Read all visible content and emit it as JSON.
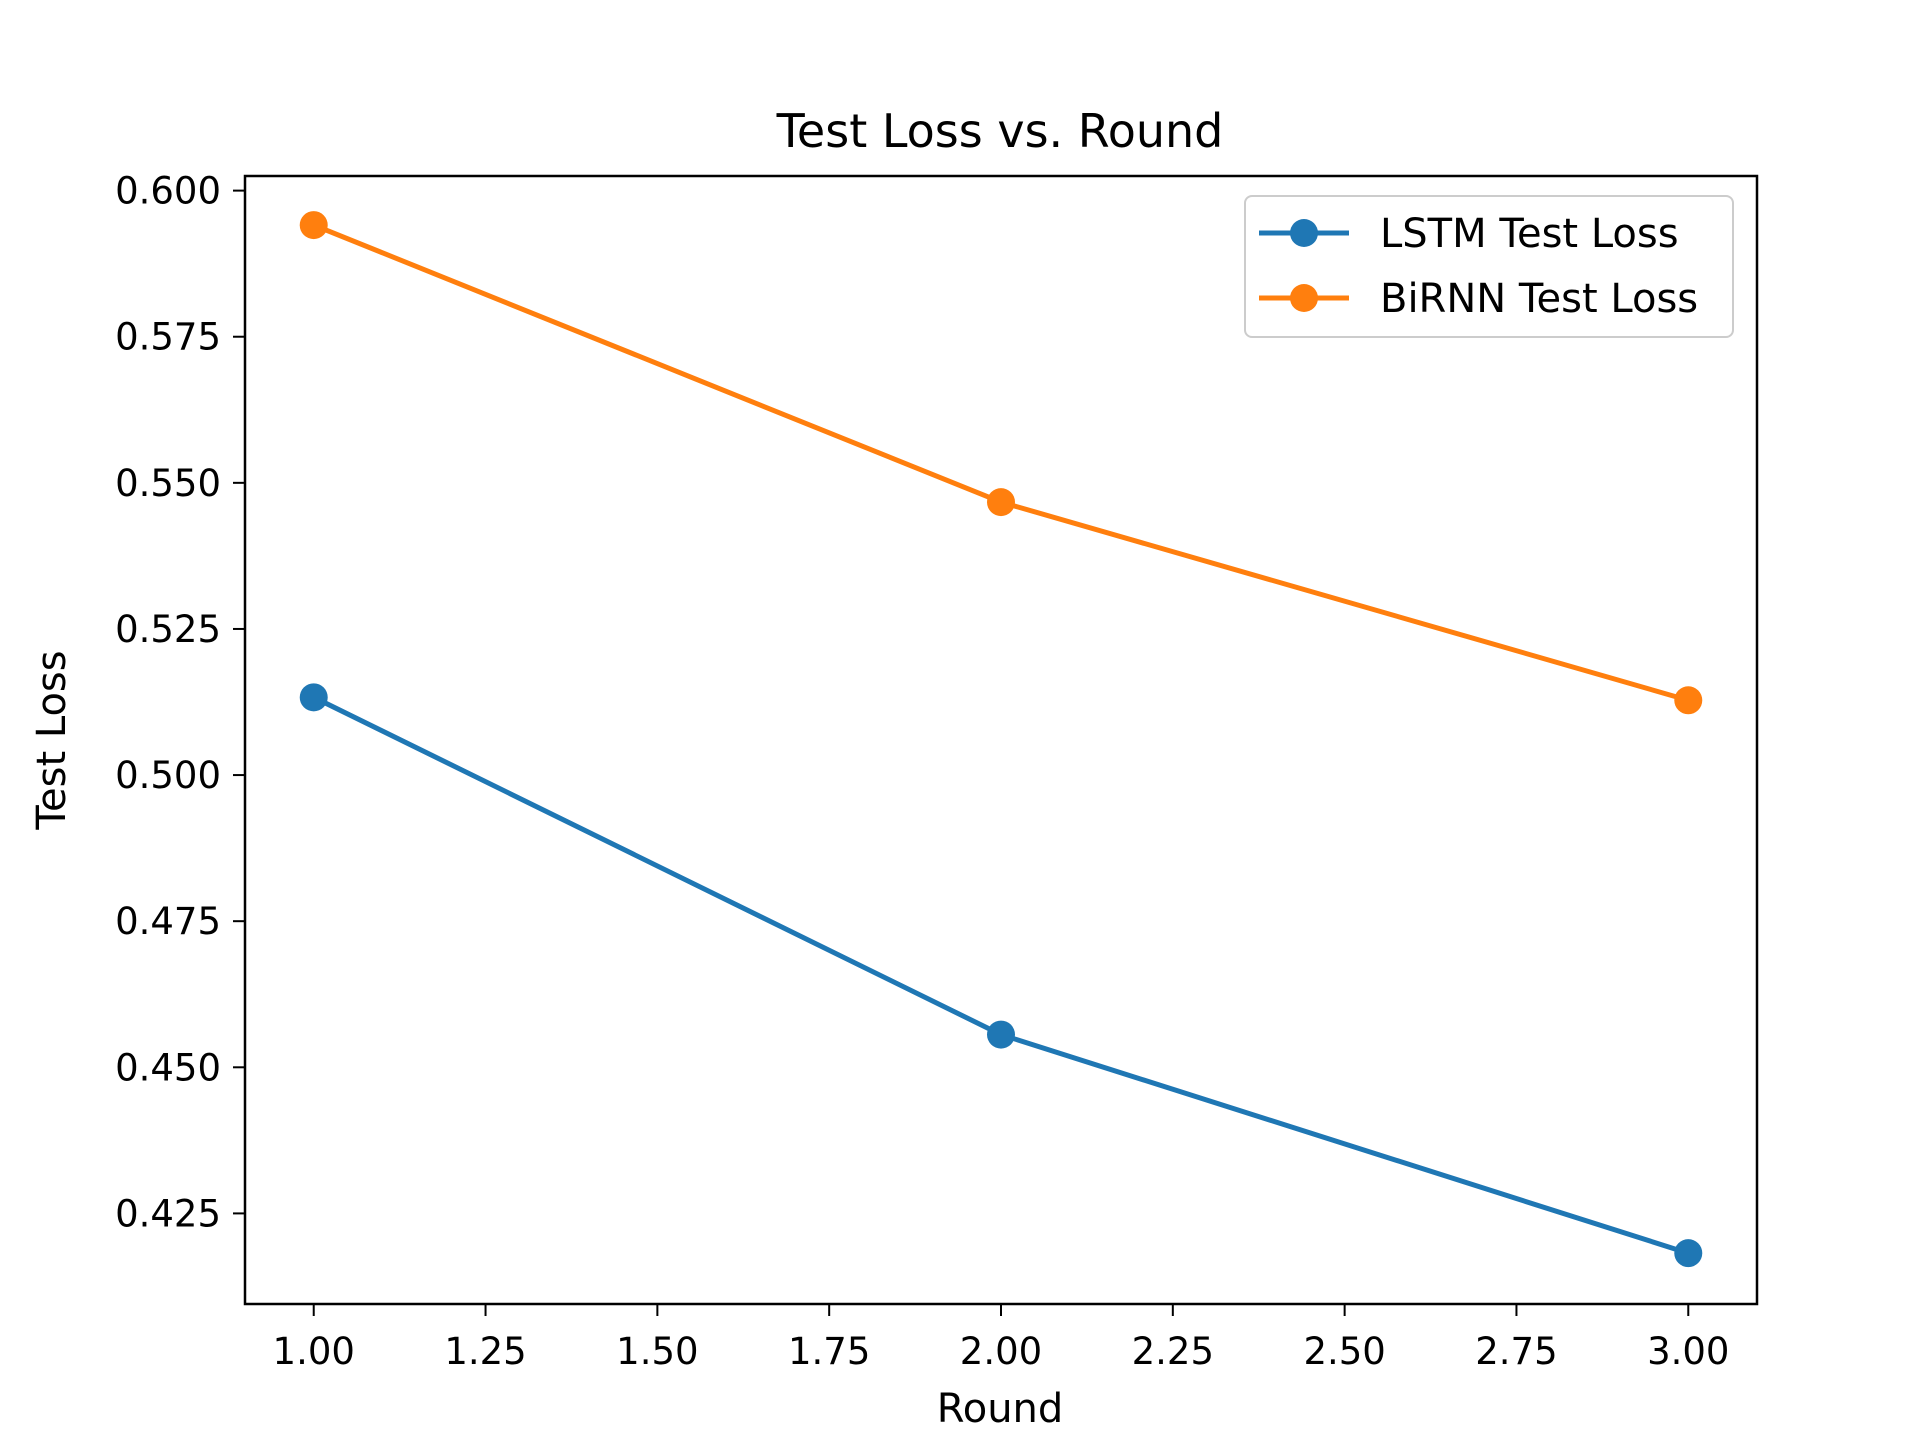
{
  "chart_data": {
    "type": "line",
    "title": "Test Loss vs. Round",
    "xlabel": "Round",
    "ylabel": "Test Loss",
    "x": [
      1,
      2,
      3
    ],
    "xlim": [
      0.9,
      3.1
    ],
    "ylim": [
      0.4095,
      0.6025
    ],
    "xticks": [
      1.0,
      1.25,
      1.5,
      1.75,
      2.0,
      2.25,
      2.5,
      2.75,
      3.0
    ],
    "xtick_labels": [
      "1.00",
      "1.25",
      "1.50",
      "1.75",
      "2.00",
      "2.25",
      "2.50",
      "2.75",
      "3.00"
    ],
    "yticks": [
      0.425,
      0.45,
      0.475,
      0.5,
      0.525,
      0.55,
      0.575,
      0.6
    ],
    "ytick_labels": [
      "0.425",
      "0.450",
      "0.475",
      "0.500",
      "0.525",
      "0.550",
      "0.575",
      "0.600"
    ],
    "grid": false,
    "legend_position": "top-right",
    "series": [
      {
        "name": "LSTM Test Loss",
        "color": "#1f77b4",
        "marker": "circle",
        "values": [
          0.5133,
          0.4556,
          0.4182
        ]
      },
      {
        "name": "BiRNN Test Loss",
        "color": "#ff7f0e",
        "marker": "circle",
        "values": [
          0.5941,
          0.5467,
          0.5128
        ]
      }
    ]
  }
}
